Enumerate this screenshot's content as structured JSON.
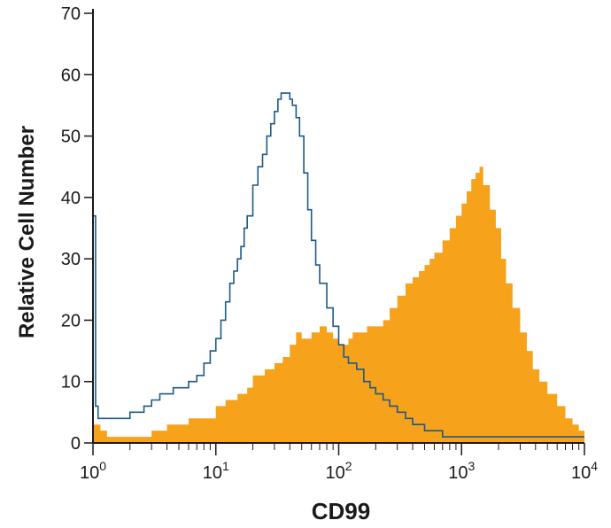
{
  "chart_data": {
    "type": "histogram",
    "xlabel": "CD99",
    "ylabel": "Relative Cell Number",
    "x_scale": "log",
    "xlim": [
      1,
      10000
    ],
    "ylim": [
      0,
      70
    ],
    "x_ticks": [
      {
        "base": "10",
        "exp": "0",
        "value": 1
      },
      {
        "base": "10",
        "exp": "1",
        "value": 10
      },
      {
        "base": "10",
        "exp": "2",
        "value": 100
      },
      {
        "base": "10",
        "exp": "3",
        "value": 1000
      },
      {
        "base": "10",
        "exp": "4",
        "value": 10000
      }
    ],
    "y_ticks": [
      "0",
      "10",
      "20",
      "30",
      "40",
      "50",
      "60",
      "70"
    ],
    "grid": false,
    "series": [
      {
        "style": "filled",
        "color": "#f7a21b",
        "points": [
          [
            1.0,
            3
          ],
          [
            1.15,
            2
          ],
          [
            1.3,
            1
          ],
          [
            1.5,
            1
          ],
          [
            1.8,
            1
          ],
          [
            2.0,
            1
          ],
          [
            2.5,
            1
          ],
          [
            3.0,
            2
          ],
          [
            4.0,
            3
          ],
          [
            5.0,
            3
          ],
          [
            6.0,
            4
          ],
          [
            7.0,
            4
          ],
          [
            8.0,
            4
          ],
          [
            10,
            6
          ],
          [
            12,
            7
          ],
          [
            15,
            8
          ],
          [
            18,
            9
          ],
          [
            20,
            11
          ],
          [
            25,
            12
          ],
          [
            30,
            13
          ],
          [
            35,
            14
          ],
          [
            40,
            16
          ],
          [
            45,
            18
          ],
          [
            50,
            17
          ],
          [
            55,
            17
          ],
          [
            60,
            18
          ],
          [
            70,
            19
          ],
          [
            80,
            18
          ],
          [
            90,
            17
          ],
          [
            100,
            16
          ],
          [
            110,
            16
          ],
          [
            120,
            17
          ],
          [
            130,
            18
          ],
          [
            150,
            18
          ],
          [
            170,
            19
          ],
          [
            200,
            19
          ],
          [
            230,
            20
          ],
          [
            260,
            22
          ],
          [
            300,
            24
          ],
          [
            350,
            26
          ],
          [
            400,
            27
          ],
          [
            450,
            28
          ],
          [
            500,
            29
          ],
          [
            550,
            30
          ],
          [
            600,
            31
          ],
          [
            700,
            33
          ],
          [
            800,
            35
          ],
          [
            900,
            37
          ],
          [
            1000,
            39
          ],
          [
            1100,
            41
          ],
          [
            1200,
            43
          ],
          [
            1300,
            44
          ],
          [
            1400,
            45
          ],
          [
            1500,
            42
          ],
          [
            1700,
            38
          ],
          [
            1900,
            35
          ],
          [
            2100,
            30
          ],
          [
            2300,
            26
          ],
          [
            2600,
            22
          ],
          [
            3000,
            18
          ],
          [
            3400,
            15
          ],
          [
            3800,
            12
          ],
          [
            4300,
            10
          ],
          [
            5000,
            8
          ],
          [
            6000,
            6
          ],
          [
            7000,
            4
          ],
          [
            8000,
            3
          ],
          [
            9000,
            2
          ],
          [
            10000,
            1
          ]
        ]
      },
      {
        "style": "outline",
        "color": "#1d5a85",
        "points": [
          [
            1.0,
            37
          ],
          [
            1.05,
            6
          ],
          [
            1.1,
            4
          ],
          [
            1.2,
            4
          ],
          [
            1.4,
            4
          ],
          [
            1.6,
            4
          ],
          [
            1.8,
            4
          ],
          [
            2.0,
            5
          ],
          [
            2.3,
            5
          ],
          [
            2.6,
            6
          ],
          [
            3.0,
            7
          ],
          [
            3.5,
            8
          ],
          [
            4.0,
            8
          ],
          [
            4.5,
            9
          ],
          [
            5.0,
            9
          ],
          [
            6.0,
            10
          ],
          [
            7.0,
            11
          ],
          [
            8.0,
            13
          ],
          [
            9.0,
            15
          ],
          [
            10,
            17
          ],
          [
            11,
            20
          ],
          [
            12,
            23
          ],
          [
            13,
            26
          ],
          [
            14,
            28
          ],
          [
            15,
            30
          ],
          [
            16,
            32
          ],
          [
            17,
            35
          ],
          [
            18,
            37
          ],
          [
            20,
            42
          ],
          [
            22,
            45
          ],
          [
            24,
            47
          ],
          [
            26,
            50
          ],
          [
            28,
            52
          ],
          [
            30,
            54
          ],
          [
            32,
            56
          ],
          [
            34,
            57
          ],
          [
            36,
            57
          ],
          [
            38,
            57
          ],
          [
            40,
            56
          ],
          [
            42,
            55
          ],
          [
            45,
            53
          ],
          [
            48,
            50
          ],
          [
            52,
            44
          ],
          [
            56,
            38
          ],
          [
            60,
            33
          ],
          [
            65,
            29
          ],
          [
            70,
            26
          ],
          [
            80,
            22
          ],
          [
            90,
            19
          ],
          [
            100,
            16
          ],
          [
            110,
            14
          ],
          [
            120,
            13
          ],
          [
            140,
            12
          ],
          [
            160,
            10
          ],
          [
            180,
            9
          ],
          [
            200,
            8
          ],
          [
            230,
            7
          ],
          [
            260,
            6
          ],
          [
            300,
            5
          ],
          [
            350,
            4
          ],
          [
            400,
            3
          ],
          [
            500,
            2
          ],
          [
            600,
            2
          ],
          [
            700,
            1
          ],
          [
            800,
            1
          ],
          [
            1000,
            1
          ],
          [
            1300,
            1
          ],
          [
            1600,
            1
          ],
          [
            2000,
            1
          ],
          [
            2500,
            1
          ],
          [
            3000,
            1
          ],
          [
            3500,
            1
          ],
          [
            4000,
            1
          ],
          [
            5000,
            1
          ],
          [
            6000,
            1
          ],
          [
            7000,
            1
          ],
          [
            8000,
            1
          ],
          [
            9000,
            1
          ],
          [
            10000,
            1
          ]
        ]
      }
    ]
  }
}
